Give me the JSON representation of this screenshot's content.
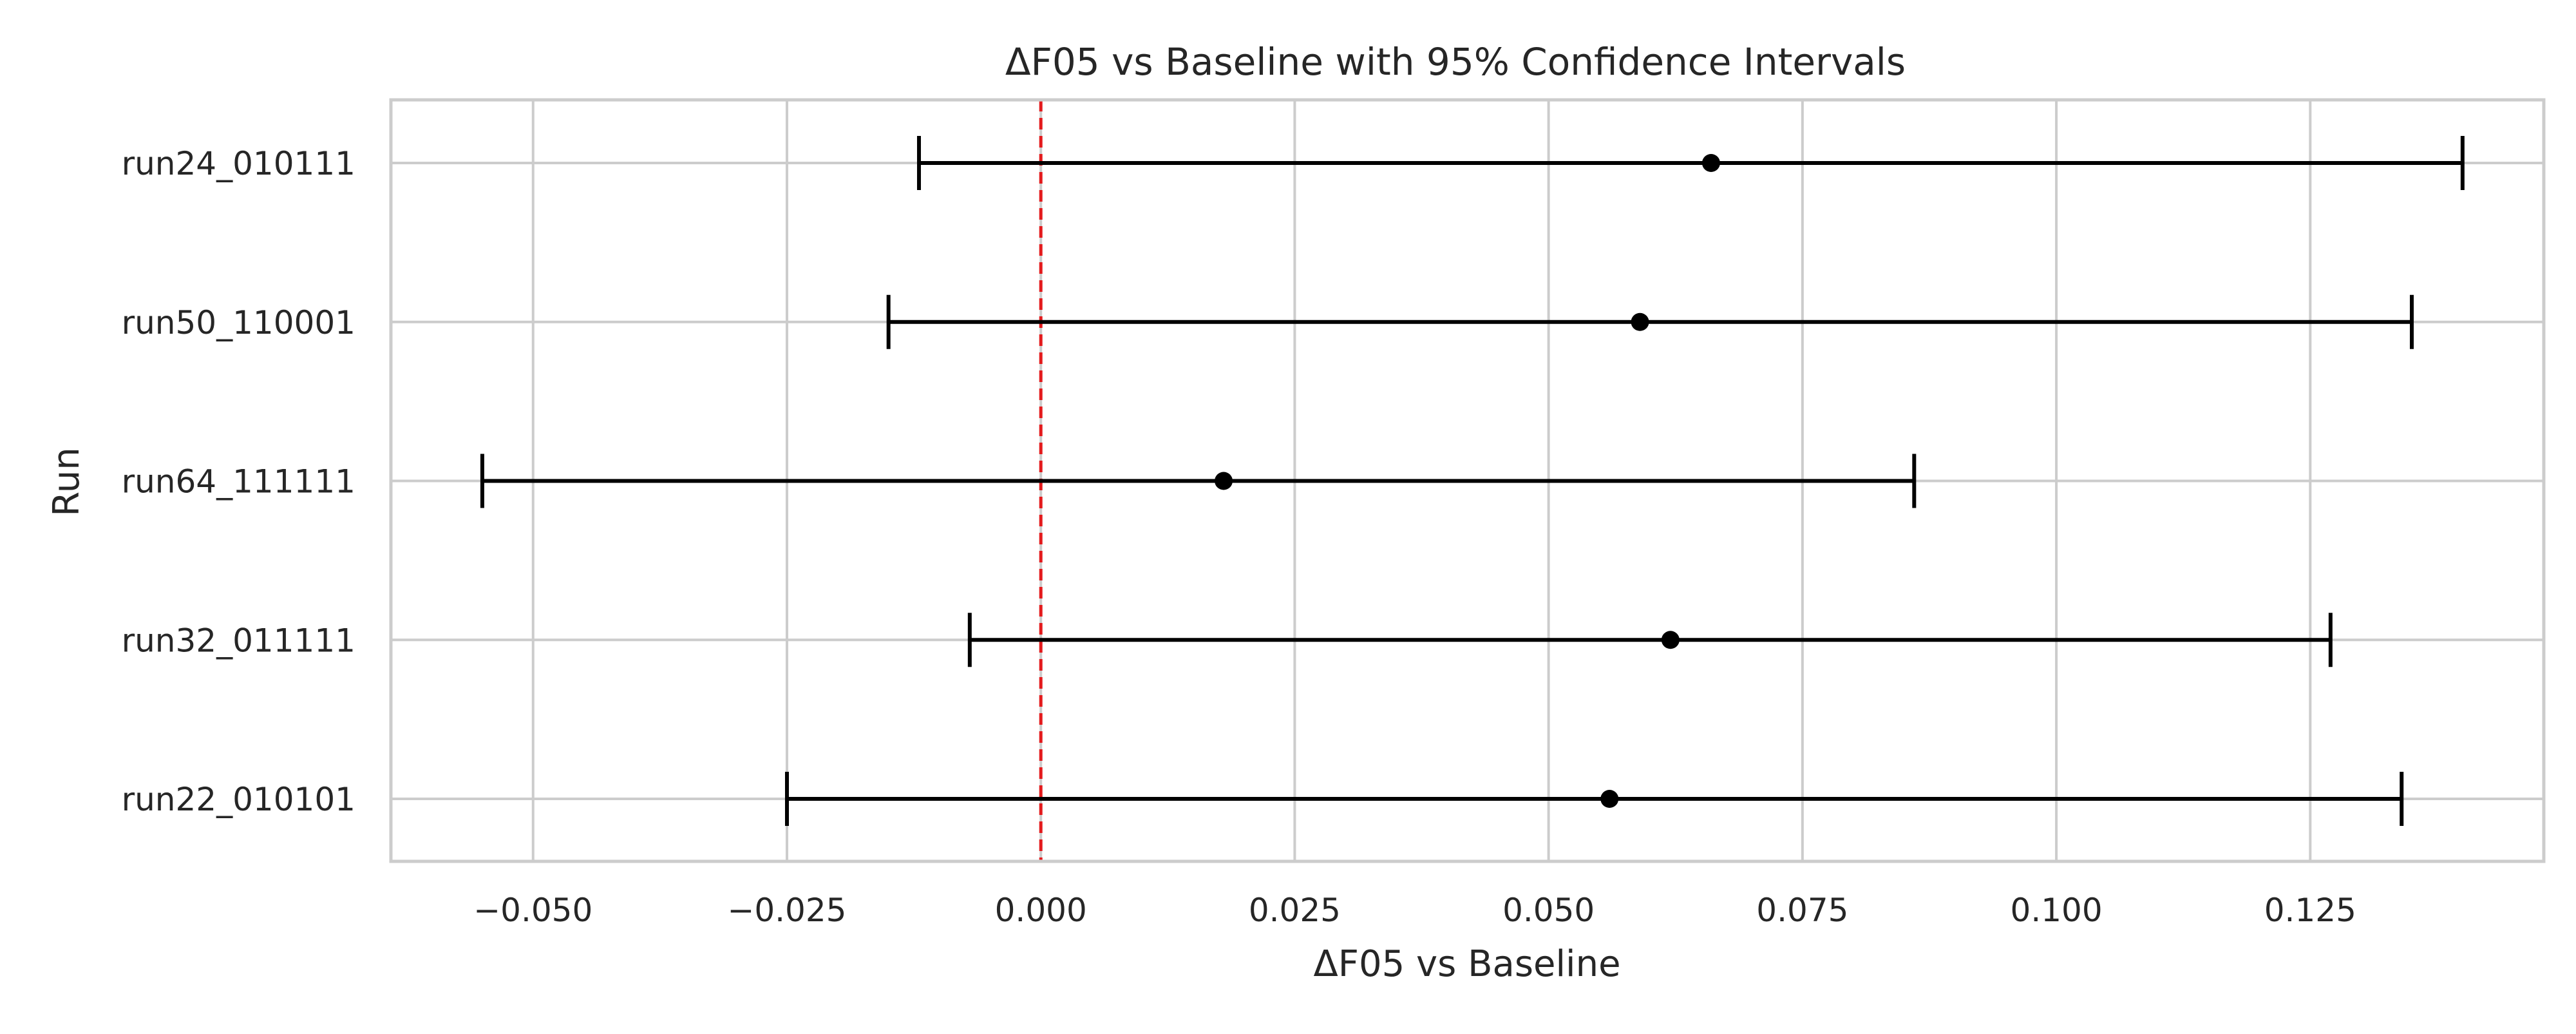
{
  "chart_data": {
    "type": "errorbar",
    "title": "ΔF05 vs Baseline with 95% Confidence Intervals",
    "xlabel": "ΔF05 vs Baseline",
    "ylabel": "Run",
    "xlim": [
      -0.064,
      0.148
    ],
    "xticks": [
      -0.05,
      -0.025,
      0.0,
      0.025,
      0.05,
      0.075,
      0.1,
      0.125
    ],
    "xtick_labels": [
      "−0.050",
      "−0.025",
      "0.000",
      "0.025",
      "0.050",
      "0.075",
      "0.100",
      "0.125"
    ],
    "grid": true,
    "reference_line": {
      "x": 0.0,
      "color": "#e31a1c",
      "style": "dashed"
    },
    "colors": {
      "marker": "#000000",
      "grid": "#cccccc",
      "frame": "#cccccc"
    },
    "runs": [
      {
        "label": "run24_010111",
        "estimate": 0.066,
        "ci_low": -0.012,
        "ci_high": 0.14
      },
      {
        "label": "run50_110001",
        "estimate": 0.059,
        "ci_low": -0.015,
        "ci_high": 0.135
      },
      {
        "label": "run64_111111",
        "estimate": 0.018,
        "ci_low": -0.055,
        "ci_high": 0.086
      },
      {
        "label": "run32_011111",
        "estimate": 0.062,
        "ci_low": -0.007,
        "ci_high": 0.127
      },
      {
        "label": "run22_010101",
        "estimate": 0.056,
        "ci_low": -0.025,
        "ci_high": 0.134
      }
    ]
  }
}
